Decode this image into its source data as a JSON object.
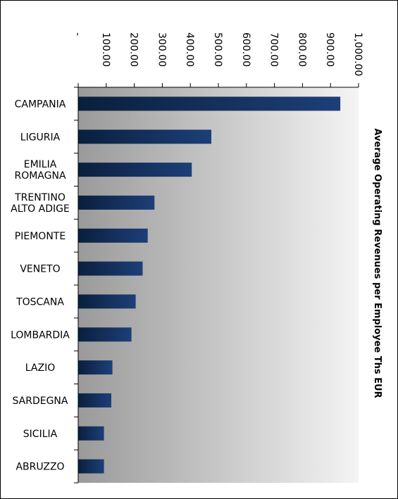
{
  "chart_data": {
    "type": "bar",
    "orientation": "horizontal",
    "title": "Average Operating Revenues per Employee Ths EUR",
    "categories": [
      "CAMPANIA",
      "LIGURIA",
      "EMILIA ROMAGNA",
      "TRENTINO ALTO ADIGE",
      "PIEMONTE",
      "VENETO",
      "TOSCANA",
      "LOMBARDIA",
      "LAZIO",
      "SARDEGNA",
      "SICILIA",
      "ABRUZZO"
    ],
    "category_lines": [
      [
        "CAMPANIA"
      ],
      [
        "LIGURIA"
      ],
      [
        "EMILIA",
        "ROMAGNA"
      ],
      [
        "TRENTINO",
        "ALTO ADIGE"
      ],
      [
        "PIEMONTE"
      ],
      [
        "VENETO"
      ],
      [
        "TOSCANA"
      ],
      [
        "LOMBARDIA"
      ],
      [
        "LAZIO"
      ],
      [
        "SARDEGNA"
      ],
      [
        "SICILIA"
      ],
      [
        "ABRUZZO"
      ]
    ],
    "values": [
      935,
      475,
      405,
      272,
      248,
      230,
      205,
      190,
      122,
      118,
      92,
      92
    ],
    "xlim": [
      0,
      1000
    ],
    "xticks": [
      0,
      100,
      200,
      300,
      400,
      500,
      600,
      700,
      800,
      900,
      1000
    ],
    "tick_labels": [
      "-",
      "100.00",
      "200.00",
      "300.00",
      "400.00",
      "500.00",
      "600.00",
      "700.00",
      "800.00",
      "900.00",
      "1,000.00"
    ],
    "tick_label_rotation": "rotated 90° clockwise",
    "title_position": "right side, rotated 90° clockwise",
    "grid": false,
    "legend": "none",
    "colors": {
      "bar_dark": "#0a1f3d",
      "bar_light": "#1d3f78",
      "plot_bg_left": "#9a9a9a",
      "plot_bg_right": "#f4f4f4",
      "axis": "#000000"
    }
  }
}
